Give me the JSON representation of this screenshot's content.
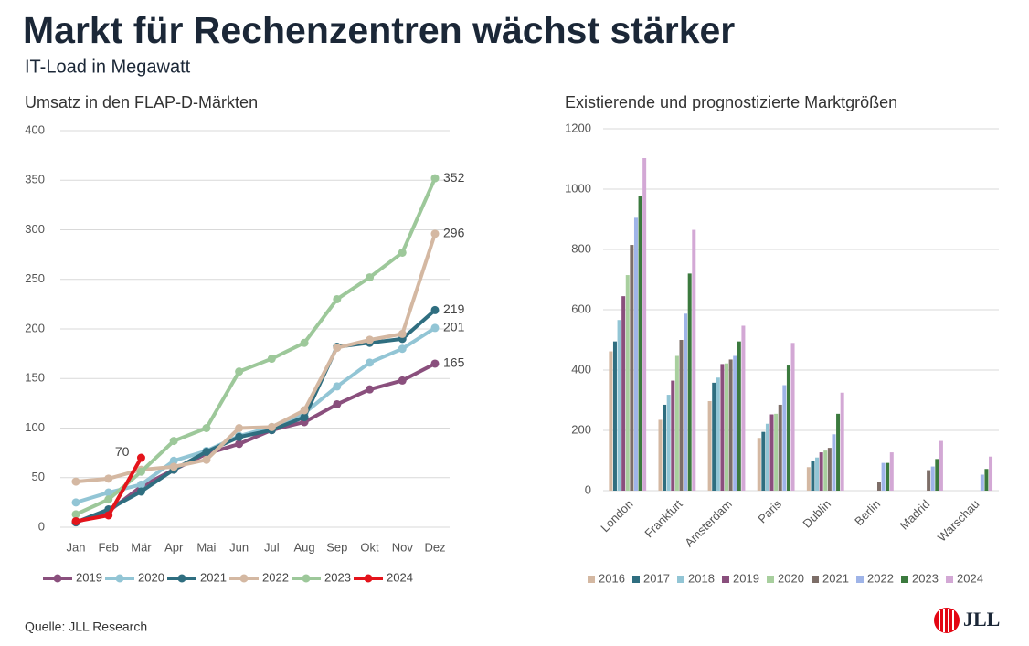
{
  "header": {
    "title": "Markt für Rechenzentren wächst stärker",
    "subtitle": "IT-Load in Megawatt"
  },
  "chart_data": [
    {
      "type": "line",
      "title": "Umsatz in den FLAP-D-Märkten",
      "categories": [
        "Jan",
        "Feb",
        "Mär",
        "Apr",
        "Mai",
        "Jun",
        "Jul",
        "Aug",
        "Sep",
        "Okt",
        "Nov",
        "Dez"
      ],
      "series": [
        {
          "name": "2019",
          "color": "#8a4f7d",
          "values": [
            5,
            16,
            41,
            58,
            74,
            84,
            98,
            106,
            124,
            139,
            148,
            165
          ]
        },
        {
          "name": "2020",
          "color": "#92c5d5",
          "values": [
            25,
            35,
            43,
            67,
            77,
            92,
            101,
            115,
            142,
            166,
            180,
            201
          ]
        },
        {
          "name": "2021",
          "color": "#2f6e80",
          "values": [
            5,
            18,
            36,
            58,
            76,
            91,
            98,
            111,
            182,
            186,
            190,
            219
          ]
        },
        {
          "name": "2022",
          "color": "#d4b8a2",
          "values": [
            46,
            49,
            58,
            61,
            68,
            100,
            101,
            118,
            181,
            189,
            195,
            296
          ]
        },
        {
          "name": "2023",
          "color": "#9dc89a",
          "values": [
            13,
            28,
            56,
            87,
            100,
            157,
            170,
            186,
            230,
            252,
            277,
            352
          ]
        },
        {
          "name": "2024",
          "color": "#e4141b",
          "values": [
            6,
            12,
            70,
            null,
            null,
            null,
            null,
            null,
            null,
            null,
            null,
            null
          ]
        }
      ],
      "ylim": [
        0,
        400
      ],
      "yticks": [
        0,
        50,
        100,
        150,
        200,
        250,
        300,
        350,
        400
      ],
      "grid": true,
      "legend": "bottom"
    },
    {
      "type": "bar",
      "title": "Existierende und prognostizierte Marktgrößen",
      "categories": [
        "London",
        "Frankfurt",
        "Amsterdam",
        "Paris",
        "Dublin",
        "Berlin",
        "Madrid",
        "Warschau"
      ],
      "series": [
        {
          "name": "2016",
          "color": "#d4b8a2",
          "values": [
            462,
            235,
            297,
            175,
            78,
            null,
            null,
            null
          ]
        },
        {
          "name": "2017",
          "color": "#2f6e80",
          "values": [
            495,
            285,
            358,
            195,
            97,
            null,
            null,
            null
          ]
        },
        {
          "name": "2018",
          "color": "#92c5d5",
          "values": [
            566,
            318,
            375,
            222,
            110,
            null,
            null,
            null
          ]
        },
        {
          "name": "2019",
          "color": "#8a4f7d",
          "values": [
            645,
            365,
            420,
            253,
            127,
            null,
            null,
            null
          ]
        },
        {
          "name": "2020",
          "color": "#a8cf9e",
          "values": [
            715,
            447,
            422,
            255,
            133,
            null,
            null,
            null
          ]
        },
        {
          "name": "2021",
          "color": "#7d6e68",
          "values": [
            815,
            500,
            435,
            285,
            142,
            28,
            68,
            null
          ]
        },
        {
          "name": "2022",
          "color": "#9fb4e8",
          "values": [
            905,
            587,
            447,
            350,
            187,
            92,
            80,
            53
          ]
        },
        {
          "name": "2023",
          "color": "#3b7a3e",
          "values": [
            977,
            720,
            495,
            415,
            255,
            92,
            105,
            72
          ]
        },
        {
          "name": "2024",
          "color": "#d3a8d5",
          "values": [
            1103,
            865,
            547,
            490,
            325,
            127,
            165,
            113
          ]
        }
      ],
      "ylim": [
        0,
        1200
      ],
      "yticks": [
        0,
        200,
        400,
        600,
        800,
        1000,
        1200
      ],
      "grid": true,
      "legend": "bottom"
    }
  ],
  "footer": {
    "source": "Quelle: JLL Research"
  },
  "logo": {
    "text": "JLL"
  }
}
